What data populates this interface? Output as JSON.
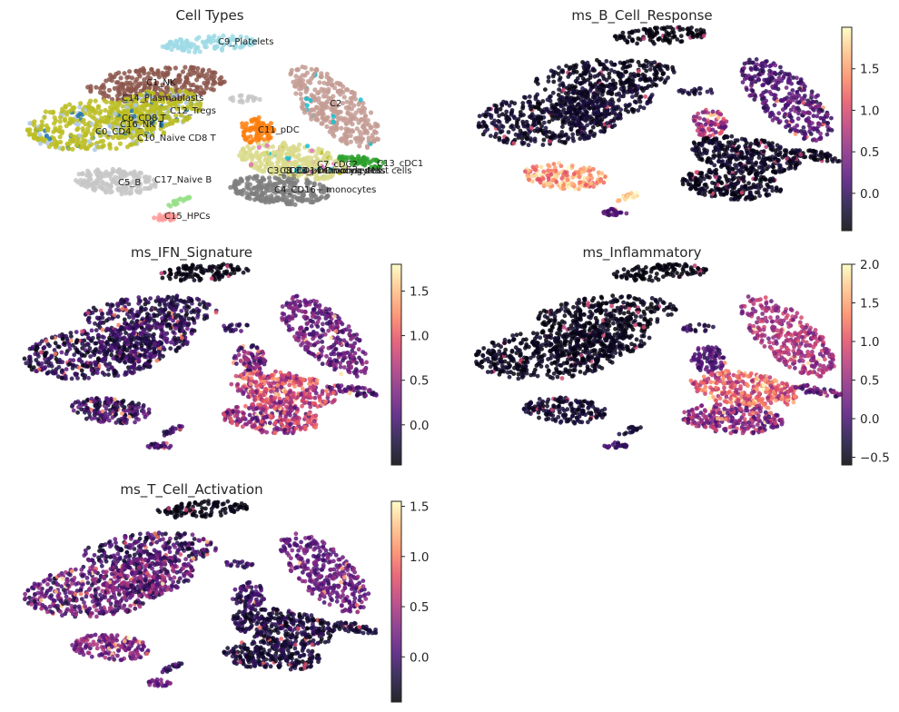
{
  "figure": {
    "background": "#ffffff"
  },
  "chart_data": [
    {
      "type": "scatter",
      "subtype": "umap-categorical",
      "title": "Cell Types",
      "xlabel": "",
      "ylabel": "",
      "clusters": [
        {
          "label": "C0_CD4",
          "color": "#bcbd22"
        },
        {
          "label": "C1_NK",
          "color": "#8c564b"
        },
        {
          "label": "C2",
          "color": "#c49c94"
        },
        {
          "label": "C3_CD14+ monocytes",
          "color": "#dbdb8d"
        },
        {
          "label": "C4_CD16+ monocytes",
          "color": "#7f7f7f"
        },
        {
          "label": "C5_B",
          "color": "#c7c7c7"
        },
        {
          "label": "C6_CD8 T",
          "color": "#bcbd22"
        },
        {
          "label": "C7_cDC2",
          "color": "#dbdb8d"
        },
        {
          "label": "C8_CD14+ monocytes",
          "color": "#d6c44e"
        },
        {
          "label": "C9_Platelets",
          "color": "#9edae5"
        },
        {
          "label": "C10_Naive CD8 T",
          "color": "#aec7e8"
        },
        {
          "label": "C11_pDC",
          "color": "#ff7f0e"
        },
        {
          "label": "C12_Tregs",
          "color": "#bcbd22"
        },
        {
          "label": "C13_cDC1",
          "color": "#2ca02c"
        },
        {
          "label": "C14_Plasmablasts",
          "color": "#bcbd22"
        },
        {
          "label": "C15_HPCs",
          "color": "#ff9896"
        },
        {
          "label": "C16_NK T",
          "color": "#1f77b4"
        },
        {
          "label": "C17_Naive B",
          "color": "#c5b0d5"
        },
        {
          "label": "C18_pDC",
          "color": "#e377c2"
        },
        {
          "label": "Dividing cells",
          "color": "#17becf"
        },
        {
          "label": "Mast cells",
          "color": "#98df8a"
        }
      ]
    },
    {
      "type": "scatter",
      "subtype": "umap-continuous",
      "title": "ms_B_Cell_Response",
      "colormap": "magma",
      "colorbar": {
        "vmin": -0.45,
        "vmax": 2.0,
        "ticks": [
          0.0,
          0.5,
          1.0,
          1.5
        ],
        "tick_labels": [
          "0.0",
          "0.5",
          "1.0",
          "1.5"
        ]
      },
      "high_regions": [
        "B cells",
        "HPCs",
        "Naive B"
      ],
      "mid_regions": [
        "pDC",
        "Naive CD8 T"
      ]
    },
    {
      "type": "scatter",
      "subtype": "umap-continuous",
      "title": "ms_IFN_Signature",
      "colormap": "magma",
      "colorbar": {
        "vmin": -0.45,
        "vmax": 1.8,
        "ticks": [
          0.0,
          0.5,
          1.0,
          1.5
        ],
        "tick_labels": [
          "0.0",
          "0.5",
          "1.0",
          "1.5"
        ]
      },
      "high_regions": [
        "CD14+ monocytes",
        "CD16+ monocytes"
      ],
      "mid_regions": [
        "C2",
        "T cells"
      ]
    },
    {
      "type": "scatter",
      "subtype": "umap-continuous",
      "title": "ms_Inflammatory",
      "colormap": "magma",
      "colorbar": {
        "vmin": -0.6,
        "vmax": 2.0,
        "ticks": [
          -0.5,
          0.0,
          0.5,
          1.0,
          1.5,
          2.0
        ],
        "tick_labels": [
          "−0.5",
          "0.0",
          "0.5",
          "1.0",
          "1.5",
          "2.0"
        ]
      },
      "high_regions": [
        "CD14+ monocytes",
        "C2"
      ],
      "mid_regions": [
        "CD16+ monocytes"
      ]
    },
    {
      "type": "scatter",
      "subtype": "umap-continuous",
      "title": "ms_T_Cell_Activation",
      "colormap": "magma",
      "colorbar": {
        "vmin": -0.45,
        "vmax": 1.55,
        "ticks": [
          0.0,
          0.5,
          1.0,
          1.5
        ],
        "tick_labels": [
          "0.0",
          "0.5",
          "1.0",
          "1.5"
        ]
      },
      "high_regions": [
        "CD8 T",
        "NK T"
      ],
      "mid_regions": [
        "C2",
        "B cells"
      ]
    }
  ]
}
